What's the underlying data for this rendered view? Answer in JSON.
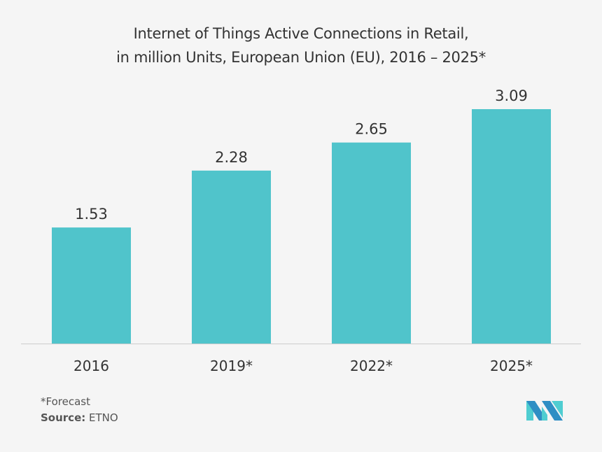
{
  "chart_data": {
    "type": "bar",
    "title_line1": "Internet of Things Active Connections in Retail,",
    "title_line2": "in million Units, European Union (EU), 2016 – 2025*",
    "categories": [
      "2016",
      "2019*",
      "2022*",
      "2025*"
    ],
    "values": [
      1.53,
      2.28,
      2.65,
      3.09
    ],
    "value_labels": [
      "1.53",
      "2.28",
      "2.65",
      "3.09"
    ],
    "xlabel": "",
    "ylabel": "",
    "ylim": [
      0,
      3.09
    ],
    "grid": false,
    "bar_color": "#50c4cb"
  },
  "footnote": "*Forecast",
  "source_label": "Source:",
  "source_value": "ETNO",
  "logo_colors": [
    "#2e8ec4",
    "#4fcdd1"
  ]
}
